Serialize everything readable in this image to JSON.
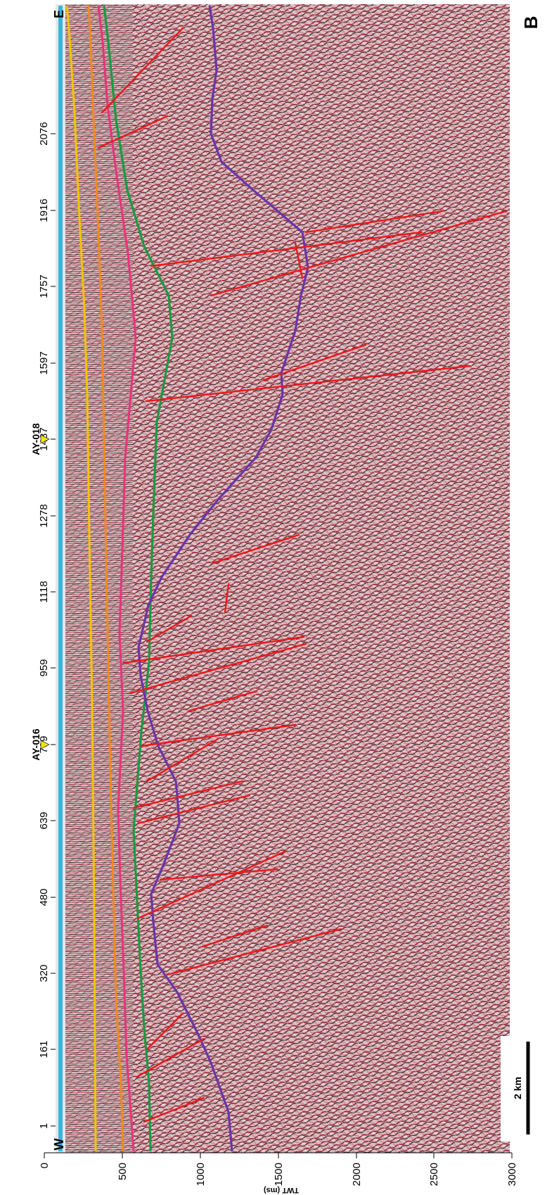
{
  "figure": {
    "panel_label": "B",
    "end_west": "W",
    "end_east": "E",
    "scale_bar_label": "2 km",
    "vertical_axis": {
      "label": "TWT (ms)",
      "ticks": [
        "0",
        "500",
        "1000",
        "1500",
        "2000",
        "2500",
        "3000"
      ]
    },
    "trace_axis": {
      "ticks": [
        "1",
        "161",
        "320",
        "480",
        "639",
        "799",
        "959",
        "1118",
        "1278",
        "1437",
        "1597",
        "1757",
        "1916",
        "2076"
      ]
    },
    "well_markers": [
      {
        "name": "AY-016",
        "trace": 799
      },
      {
        "name": "AY-018",
        "trace": 1437
      }
    ],
    "horizon_colors": {
      "seafloor": "#35b6dc",
      "yellow": "#f5c400",
      "orange": "#f08a1e",
      "pink": "#e8337a",
      "green": "#1a9a43",
      "purple": "#6a35a8",
      "fault": "#e8191c"
    }
  }
}
